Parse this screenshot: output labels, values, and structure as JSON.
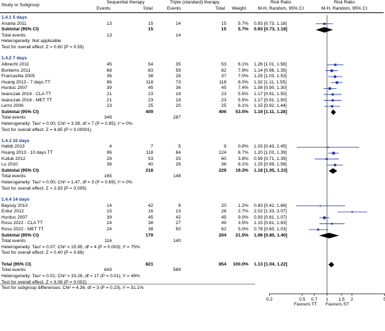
{
  "header": {
    "study_or_subgroup": "Study or Subgroup",
    "group1": "Sequential therapy",
    "group2": "Triple (standard) therapy",
    "events": "Events",
    "total": "Total",
    "weight": "Weight",
    "rr_title": "Risk Ratio",
    "rr_method": "M-H, Random, 95% CI"
  },
  "footer": {
    "favours_left": "Favours TT",
    "favours_right": "Favours ST"
  },
  "colors": {
    "study": "#1f2fa6",
    "text": "#000000",
    "group_title": "#1a3c8c"
  },
  "chart_data": {
    "type": "forest",
    "scale": "log",
    "xlim": [
      0.2,
      5
    ],
    "ticks": [
      "0.2",
      "0.5",
      "0.7",
      "1",
      "1.5",
      "2",
      "5"
    ],
    "groups": [
      {
        "title": "1.4.1 5 days",
        "studies": [
          {
            "name": "Anania 2011",
            "e1": "13",
            "t1": "15",
            "e2": "14",
            "t2": "15",
            "w": "5.7%",
            "ci_text": "0.93 [0.73, 1.18]",
            "rr": 0.93,
            "lo": 0.73,
            "hi": 1.18
          }
        ],
        "subtotal": {
          "label": "Subtotal (95% CI)",
          "t1": "15",
          "t2": "15",
          "w": "5.7%",
          "ci_text": "0.93 [0.73, 1.18]",
          "rr": 0.93,
          "lo": 0.73,
          "hi": 1.18
        },
        "total_events": {
          "label": "Total events",
          "e1": "13",
          "e2": "14"
        },
        "stats": [
          "Heterogeneity: Not applicable",
          "Test for overall effect: Z = 0.60 (P = 0.55)"
        ]
      },
      {
        "title": "1.4.2 7 days",
        "studies": [
          {
            "name": "Albrecht 2011",
            "e1": "45",
            "t1": "54",
            "e2": "35",
            "t2": "53",
            "w": "6.1%",
            "ci_text": "1.26 [1.01, 1.58]",
            "rr": 1.26,
            "lo": 1.01,
            "hi": 1.58
          },
          {
            "name": "Bontems 2011",
            "e1": "68",
            "t1": "83",
            "e2": "59",
            "t2": "82",
            "w": "7.9%",
            "ci_text": "1.14 [0.96, 1.35]",
            "rr": 1.14,
            "lo": 0.96,
            "hi": 1.35
          },
          {
            "name": "Francavilla 2005",
            "e1": "36",
            "t1": "38",
            "e2": "28",
            "t2": "37",
            "w": "7.0%",
            "ci_text": "1.25 [1.03, 1.53]",
            "rr": 1.25,
            "lo": 1.03,
            "hi": 1.53
          },
          {
            "name": "Huang 2013 - 7 days TT",
            "e1": "96",
            "t1": "118",
            "e2": "73",
            "t2": "118",
            "w": "8.0%",
            "ci_text": "1.32 [1.11, 1.55]",
            "rr": 1.32,
            "lo": 1.11,
            "hi": 1.55
          },
          {
            "name": "Hurduc 2007",
            "e1": "39",
            "t1": "45",
            "e2": "36",
            "t2": "45",
            "w": "7.4%",
            "ci_text": "1.08 [0.90, 1.30]",
            "rr": 1.08,
            "lo": 0.9,
            "hi": 1.3
          },
          {
            "name": "Iwanczak 2016 - CLA TT",
            "e1": "21",
            "t1": "23",
            "e2": "18",
            "t2": "23",
            "w": "5.5%",
            "ci_text": "1.17 [0.91, 1.50]",
            "rr": 1.17,
            "lo": 0.91,
            "hi": 1.5
          },
          {
            "name": "Iwanczak 2016 - MET TT",
            "e1": "21",
            "t1": "23",
            "e2": "18",
            "t2": "23",
            "w": "5.5%",
            "ci_text": "1.17 [0.91, 1.50]",
            "rr": 1.17,
            "lo": 0.91,
            "hi": 1.5
          },
          {
            "name": "Lerro 2006",
            "e1": "23",
            "t1": "25",
            "e2": "20",
            "t2": "25",
            "w": "6.1%",
            "ci_text": "1.15 [0.92, 1.44]",
            "rr": 1.15,
            "lo": 0.92,
            "hi": 1.44
          }
        ],
        "subtotal": {
          "label": "Subtotal (95% CI)",
          "t1": "409",
          "t2": "406",
          "w": "53.5%",
          "ci_text": "1.19 [1.11, 1.28]",
          "rr": 1.19,
          "lo": 1.11,
          "hi": 1.28
        },
        "total_events": {
          "label": "Total events",
          "e1": "349",
          "e2": "287"
        },
        "stats": [
          "Heterogeneity: Tau² = 0.00; Chi² = 3.38, df = 7 (P = 0.85); I² = 0%",
          "Test for overall effect: Z = 4.85 (P < 0.00001)"
        ]
      },
      {
        "title": "1.4.3 10 days",
        "studies": [
          {
            "name": "Habib 2013",
            "e1": "4",
            "t1": "7",
            "e2": "5",
            "t2": "9",
            "w": "0.8%",
            "ci_text": "1.03 [0.43, 2.45]",
            "rr": 1.03,
            "lo": 0.43,
            "hi": 2.45
          },
          {
            "name": "Huang 2013 - 10 days TT",
            "e1": "96",
            "t1": "118",
            "e2": "84",
            "t2": "124",
            "w": "8.7%",
            "ci_text": "1.20 [1.03, 1.39]",
            "rr": 1.2,
            "lo": 1.03,
            "hi": 1.39
          },
          {
            "name": "Kutluk 2012",
            "e1": "29",
            "t1": "53",
            "e2": "33",
            "t2": "60",
            "w": "3.8%",
            "ci_text": "0.99 [0.71, 1.39]",
            "rr": 0.99,
            "lo": 0.71,
            "hi": 1.39
          },
          {
            "name": "Lu 2010",
            "e1": "36",
            "t1": "40",
            "e2": "26",
            "t2": "36",
            "w": "6.1%",
            "ci_text": "1.25 [0.99, 1.56]",
            "rr": 1.25,
            "lo": 0.99,
            "hi": 1.56
          }
        ],
        "subtotal": {
          "label": "Subtotal (95% CI)",
          "t1": "218",
          "t2": "229",
          "w": "19.3%",
          "ci_text": "1.18 [1.05, 1.33]",
          "rr": 1.18,
          "lo": 1.05,
          "hi": 1.33
        },
        "total_events": {
          "label": "Total events",
          "e1": "165",
          "e2": "148"
        },
        "stats": [
          "Heterogeneity: Tau² = 0.00; Chi² = 1.47, df = 3 (P = 0.69); I² = 0%",
          "Test for overall effect: Z = 2.83 (P = 0.005)"
        ]
      },
      {
        "title": "1.4.4 14 days",
        "studies": [
          {
            "name": "Baysoy 2010",
            "e1": "14",
            "t1": "42",
            "e2": "8",
            "t2": "20",
            "w": "1.2%",
            "ci_text": "0.83 [0.42, 1.66]",
            "rr": 0.83,
            "lo": 0.42,
            "hi": 1.66
          },
          {
            "name": "Erdur 2012",
            "e1": "15",
            "t1": "16",
            "e2": "13",
            "t2": "28",
            "w": "2.7%",
            "ci_text": "2.02 [1.33, 3.07]",
            "rr": 2.02,
            "lo": 1.33,
            "hi": 3.07
          },
          {
            "name": "Hurduc 2007",
            "e1": "39",
            "t1": "45",
            "e2": "42",
            "t2": "45",
            "w": "9.0%",
            "ci_text": "0.93 [0.81, 1.07]",
            "rr": 0.93,
            "lo": 0.81,
            "hi": 1.07
          },
          {
            "name": "Rosu 2022 - CLA TT",
            "e1": "24",
            "t1": "38",
            "e2": "27",
            "t2": "49",
            "w": "3.5%",
            "ci_text": "1.15 [0.81, 1.63]",
            "rr": 1.15,
            "lo": 0.81,
            "hi": 1.63
          },
          {
            "name": "Rosu 2022 - MET TT",
            "e1": "24",
            "t1": "38",
            "e2": "50",
            "t2": "62",
            "w": "5.0%",
            "ci_text": "0.78 [0.60, 1.03]",
            "rr": 0.78,
            "lo": 0.6,
            "hi": 1.03
          }
        ],
        "subtotal": {
          "label": "Subtotal (95% CI)",
          "t1": "179",
          "t2": "204",
          "w": "21.5%",
          "ci_text": "1.06 [0.80, 1.40]",
          "rr": 1.06,
          "lo": 0.8,
          "hi": 1.4
        },
        "total_events": {
          "label": "Total events",
          "e1": "116",
          "e2": "140"
        },
        "stats": [
          "Heterogeneity: Tau² = 0.07; Chi² = 15.95, df = 4 (P = 0.003); I² = 75%",
          "Test for overall effect: Z = 0.40 (P = 0.69)"
        ]
      }
    ],
    "overall": {
      "label": "Total (95% CI)",
      "t1": "821",
      "t2": "854",
      "w": "100.0%",
      "ci_text": "1.13 [1.04, 1.22]",
      "rr": 1.13,
      "lo": 1.04,
      "hi": 1.22
    },
    "overall_events": {
      "label": "Total events",
      "e1": "643",
      "e2": "589"
    },
    "overall_stats": [
      "Heterogeneity: Tau² = 0.01; Chi² = 33.26, df = 17 (P = 0.01); I² = 49%",
      "Test for overall effect: Z = 3.06 (P = 0.002)",
      "Test for subgroup differences: Chi² = 4.36, df = 3 (P = 0.23), I² = 31.1%"
    ]
  }
}
